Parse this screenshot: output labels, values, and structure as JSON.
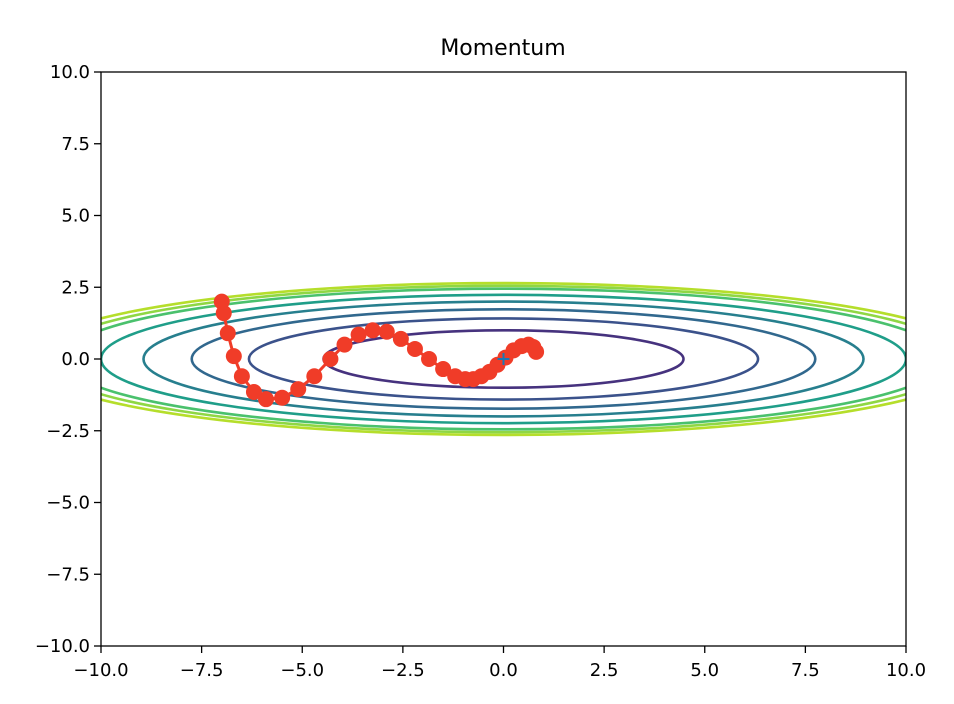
{
  "chart_data": {
    "type": "line",
    "title": "Momentum",
    "xlabel": "",
    "ylabel": "",
    "xlim": [
      -10,
      10
    ],
    "ylim": [
      -10,
      10
    ],
    "x_ticks": [
      -10.0,
      -7.5,
      -5.0,
      -2.5,
      0.0,
      2.5,
      5.0,
      7.5,
      10.0
    ],
    "x_tick_labels": [
      "−10.0",
      "−7.5",
      "−5.0",
      "−2.5",
      "0.0",
      "2.5",
      "5.0",
      "7.5",
      "10.0"
    ],
    "y_ticks": [
      10.0,
      7.5,
      5.0,
      2.5,
      0.0,
      -2.5,
      -5.0,
      -7.5,
      -10.0
    ],
    "y_tick_labels": [
      "10.0",
      "7.5",
      "5.0",
      "2.5",
      "0.0",
      "−2.5",
      "−5.0",
      "−7.5",
      "−10.0"
    ],
    "grid": false,
    "contours": {
      "function": "x^2/20 + y^2",
      "levels": [
        1.0,
        2.0,
        3.0,
        4.0,
        5.0,
        6.0,
        6.5,
        7.0
      ],
      "colors": [
        "#46327e",
        "#3b528b",
        "#31688e",
        "#277f8e",
        "#1f9e89",
        "#4ac16d",
        "#8fd744",
        "#b5de2b"
      ]
    },
    "minimum_marker": {
      "x": 0,
      "y": 0,
      "marker": "+",
      "color": "#1f77b4"
    },
    "series": [
      {
        "color": "#f03c28",
        "marker": "o",
        "x": [
          -7.0,
          -6.95,
          -6.85,
          -6.7,
          -6.5,
          -6.2,
          -5.9,
          -5.5,
          -5.1,
          -4.7,
          -4.3,
          -3.95,
          -3.6,
          -3.25,
          -2.9,
          -2.55,
          -2.2,
          -1.85,
          -1.5,
          -1.2,
          -0.95,
          -0.75,
          -0.55,
          -0.35,
          -0.15,
          0.05,
          0.25,
          0.45,
          0.62,
          0.74,
          0.81
        ],
        "y": [
          2.0,
          1.6,
          0.9,
          0.1,
          -0.6,
          -1.15,
          -1.4,
          -1.35,
          -1.05,
          -0.6,
          0.0,
          0.5,
          0.85,
          1.0,
          0.95,
          0.7,
          0.35,
          0.0,
          -0.35,
          -0.6,
          -0.7,
          -0.7,
          -0.6,
          -0.45,
          -0.2,
          0.05,
          0.3,
          0.45,
          0.5,
          0.42,
          0.25
        ]
      }
    ]
  }
}
